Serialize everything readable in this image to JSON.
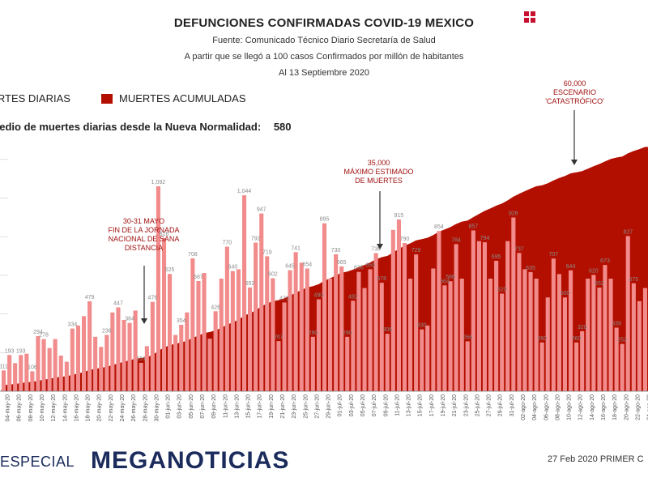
{
  "header": {
    "title": "DEFUNCIONES CONFIRMADAS COVID-19 MEXICO",
    "source": "Fuente: Comunicado Técnico Diario Secretaría de Salud",
    "note": "A partir que se llegó a 100 casos Confirmados por millón de habitantes",
    "date": "Al 13 Septiembre 2020"
  },
  "legend": {
    "daily_label": "MUERTES DIARIAS",
    "cumulative_label": "MUERTES ACUMULADAS"
  },
  "info": {
    "label": "Promedio de muertes diarias desde la Nueva Normalidad:",
    "value": "580"
  },
  "annotations": [
    {
      "lines": [
        "30-31 MAYO",
        "FIN DE LA JORNADA",
        "NACIONAL DE SANA",
        "DISTANCIA"
      ]
    },
    {
      "lines": [
        "35,000",
        "MÁXIMO ESTIMADO",
        "DE MUERTES"
      ]
    },
    {
      "lines": [
        "60,000",
        "ESCENARIO",
        "'CATASTRÓFICO'"
      ]
    }
  ],
  "footer": {
    "especial": "ESPECIAL",
    "brand": "MEGANOTICIAS",
    "right_text": "27 Feb 2020 PRIMER C"
  },
  "colors": {
    "cumulative": "#b30f00",
    "daily_bar": "#f28b8b",
    "label": "#8a8a8a",
    "brand": "#1a2b5c",
    "accent": "#c8102e"
  },
  "chart_data": {
    "type": "bar",
    "title": "DEFUNCIONES CONFIRMADAS COVID-19 MEXICO",
    "series_daily_name": "MUERTES DIARIAS",
    "series_cumulative_name": "MUERTES ACUMULADAS",
    "start_date": "2020-05-02",
    "tick_labels": [
      "04-may-20",
      "06-may-20",
      "08-may-20",
      "10-may-20",
      "12-may-20",
      "14-may-20",
      "16-may-20",
      "18-may-20",
      "20-may-20",
      "22-may-20",
      "24-may-20",
      "26-may-20",
      "28-may-20",
      "30-may-20",
      "01-jun-20",
      "03-jun-20",
      "05-jun-20",
      "07-jun-20",
      "09-jun-20",
      "11-jun-20",
      "13-jun-20",
      "15-jun-20",
      "17-jun-20",
      "19-jun-20",
      "21-jun-20",
      "23-jun-20",
      "25-jun-20",
      "27-jun-20",
      "29-jun-20",
      "01-jul-20",
      "03-jul-20",
      "05-jul-20",
      "07-jul-20",
      "09-jul-20",
      "11-jul-20",
      "13-jul-20",
      "15-jul-20",
      "17-jul-20",
      "19-jul-20",
      "21-jul-20",
      "23-jul-20",
      "25-jul-20",
      "27-jul-20",
      "29-jul-20",
      "31-jul-20",
      "02-ago-20",
      "04-ago-20",
      "06-ago-20",
      "08-ago-20",
      "10-ago-20",
      "12-ago-20",
      "14-ago-20",
      "16-ago-20",
      "18-ago-20",
      "20-ago-20",
      "22-ago-20",
      "24-ago-20",
      "26-ago-20",
      "28-ago-20",
      "30-ago-20",
      "01-sep-20",
      "03-sep-20"
    ],
    "daily_values": [
      111,
      193,
      150,
      193,
      200,
      106,
      294,
      278,
      230,
      278,
      190,
      157,
      334,
      350,
      400,
      479,
      290,
      236,
      300,
      420,
      447,
      380,
      364,
      430,
      151,
      240,
      476,
      1092,
      816,
      625,
      300,
      354,
      420,
      708,
      587,
      630,
      280,
      426,
      600,
      770,
      640,
      650,
      1044,
      553,
      792,
      947,
      719,
      602,
      267,
      473,
      645,
      741,
      685,
      654,
      290,
      490,
      895,
      600,
      730,
      665,
      290,
      482,
      636,
      550,
      650,
      736,
      578,
      306,
      860,
      915,
      790,
      600,
      729,
      330,
      350,
      654,
      854,
      564,
      586,
      784,
      600,
      266,
      857,
      800,
      794,
      600,
      695,
      520,
      800,
      926,
      737,
      650,
      635,
      600,
      260,
      500,
      707,
      624,
      500,
      644,
      260,
      320,
      600,
      620,
      552,
      673,
      600,
      339,
      252,
      827,
      575,
      480,
      550
    ],
    "daily_labeled": {
      "0": "111",
      "1": "193",
      "3": "193",
      "5": "106",
      "6": "294",
      "7": "278",
      "12": "334",
      "15": "479",
      "18": "236",
      "20": "447",
      "22": "364",
      "24": "151",
      "26": "476",
      "27": "1,092",
      "28": "816",
      "29": "625",
      "31": "354",
      "33": "708",
      "34": "587",
      "37": "426",
      "39": "770",
      "40": "640",
      "42": "1,044",
      "43": "553",
      "44": "792",
      "45": "947",
      "46": "719",
      "47": "602",
      "48": "267",
      "49": "473",
      "50": "645",
      "51": "741",
      "53": "654",
      "54": "290",
      "55": "490",
      "56": "895",
      "58": "730",
      "59": "665",
      "60": "290",
      "61": "482",
      "62": "636",
      "64": "650",
      "65": "736",
      "66": "578",
      "67": "306",
      "69": "915",
      "70": "790",
      "72": "729",
      "73": "330",
      "76": "854",
      "77": "564",
      "78": "586",
      "79": "784",
      "81": "266",
      "82": "857",
      "84": "794",
      "86": "695",
      "87": "520",
      "89": "926",
      "90": "737",
      "92": "635",
      "94": "260",
      "96": "707",
      "98": "500",
      "99": "644",
      "100": "260",
      "101": "320",
      "103": "620",
      "104": "552",
      "105": "673",
      "107": "339",
      "108": "252",
      "109": "827",
      "110": "575"
    },
    "cumulative_end": 66400,
    "ylim_daily": [
      0,
      1200
    ],
    "ylim_cumulative": [
      0,
      70000
    ]
  }
}
